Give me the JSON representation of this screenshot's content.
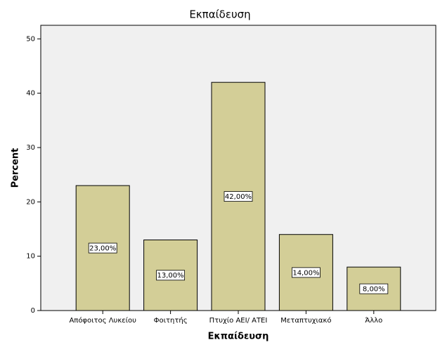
{
  "chart_data": {
    "type": "bar",
    "title": "Εκπαίδευση",
    "x_label": "Εκπαίδευση",
    "y_label": "Percent",
    "categories": [
      "Απόφοιτος Λυκείου",
      "Φοιτητής",
      "Πτυχίο ΑΕΙ/ ΑΤΕΙ",
      "Μεταπτυχιακό",
      "Άλλο"
    ],
    "values": [
      23,
      13,
      42,
      14,
      8
    ],
    "value_labels": [
      "23,00%",
      "13,00%",
      "42,00%",
      "14,00%",
      "8,00%"
    ],
    "color": "#d3ce97",
    "ylim": [
      0,
      52.5
    ],
    "yticks": [
      0,
      10,
      20,
      30,
      40,
      50
    ],
    "grid": false
  }
}
